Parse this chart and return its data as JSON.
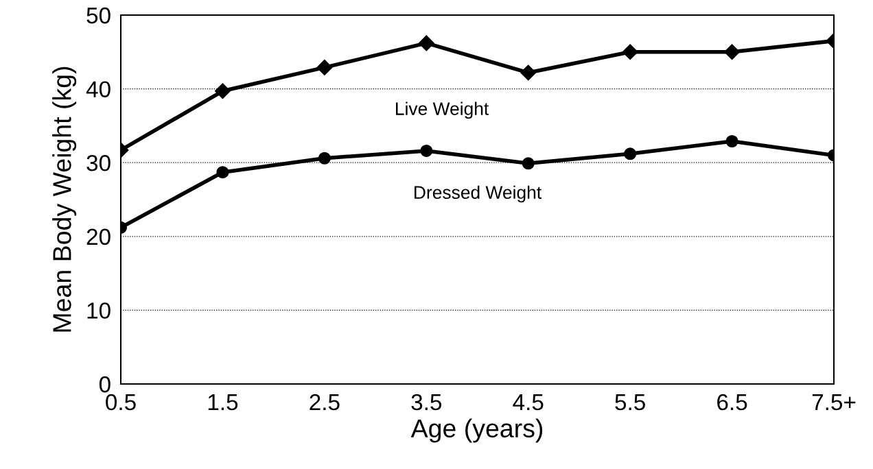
{
  "chart_data": {
    "type": "line",
    "xlabel": "Age (years)",
    "ylabel": "Mean Body Weight (kg)",
    "categories": [
      "0.5",
      "1.5",
      "2.5",
      "3.5",
      "4.5",
      "5.5",
      "6.5",
      "7.5+"
    ],
    "series": [
      {
        "name": "Live Weight",
        "color": "#000000",
        "marker": "diamond",
        "values": [
          31.7,
          39.7,
          42.9,
          46.2,
          42.2,
          45.0,
          45.0,
          46.5
        ]
      },
      {
        "name": "Dressed Weight",
        "color": "#000000",
        "marker": "circle",
        "values": [
          21.2,
          28.7,
          30.6,
          31.6,
          29.9,
          31.2,
          32.9,
          31.0
        ]
      }
    ],
    "ylim": [
      0,
      50
    ],
    "yticks": [
      0,
      10,
      20,
      30,
      40,
      50
    ],
    "grid": "y",
    "legend": false,
    "line_style": "solid"
  }
}
